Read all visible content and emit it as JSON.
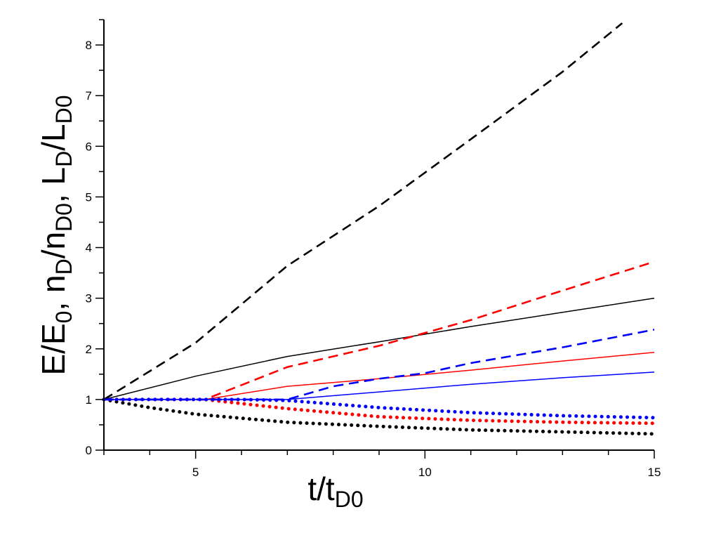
{
  "chart_data": {
    "type": "line",
    "xlabel": {
      "main": "t/t",
      "sub": "D0"
    },
    "ylabel": [
      {
        "t": "E/E",
        "s": "0"
      },
      {
        "t": ", n",
        "s": "D"
      },
      {
        "t": "/n",
        "s": "D0"
      },
      {
        "t": ", L",
        "s": "D"
      },
      {
        "t": "/L",
        "s": "D0"
      }
    ],
    "xlim": [
      3,
      15
    ],
    "ylim": [
      0,
      8.5
    ],
    "x_ticks": [
      5,
      10,
      15
    ],
    "x_minor_step": 1,
    "y_ticks": [
      0,
      1,
      2,
      3,
      4,
      5,
      6,
      7,
      8
    ],
    "y_minor_step": 0.5,
    "grid": false,
    "series": [
      {
        "color": "#000000",
        "style": "dashed",
        "x": [
          3,
          5,
          7,
          9,
          11,
          13,
          14.3
        ],
        "y": [
          1,
          2.12,
          3.64,
          4.82,
          6.14,
          7.47,
          8.43
        ]
      },
      {
        "color": "#000000",
        "style": "solid",
        "x": [
          3,
          5,
          7,
          9,
          11,
          13,
          15
        ],
        "y": [
          1,
          1.46,
          1.85,
          2.14,
          2.44,
          2.72,
          3.0
        ]
      },
      {
        "color": "#000000",
        "style": "dotted",
        "x": [
          3,
          4,
          5,
          7,
          9,
          11,
          13,
          15
        ],
        "y": [
          1,
          0.84,
          0.71,
          0.55,
          0.47,
          0.4,
          0.36,
          0.32
        ]
      },
      {
        "color": "#ff0000",
        "style": "dashed",
        "x": [
          3,
          5.2,
          7,
          9,
          11,
          13,
          15
        ],
        "y": [
          1,
          1.0,
          1.64,
          2.06,
          2.57,
          3.15,
          3.72
        ]
      },
      {
        "color": "#ff0000",
        "style": "solid",
        "x": [
          3,
          5.2,
          7,
          9,
          11,
          13,
          15
        ],
        "y": [
          1,
          1.0,
          1.26,
          1.41,
          1.58,
          1.76,
          1.93
        ]
      },
      {
        "color": "#ff0000",
        "style": "dotted",
        "x": [
          3,
          5.2,
          7,
          9,
          11,
          13,
          15
        ],
        "y": [
          1,
          1.0,
          0.82,
          0.66,
          0.59,
          0.55,
          0.53
        ]
      },
      {
        "color": "#0000ff",
        "style": "dashed",
        "x": [
          3,
          7,
          8,
          9,
          10,
          11,
          13,
          15
        ],
        "y": [
          1,
          1.0,
          1.26,
          1.41,
          1.52,
          1.72,
          2.03,
          2.38
        ]
      },
      {
        "color": "#0000ff",
        "style": "solid",
        "x": [
          3,
          7,
          9,
          11,
          13,
          15
        ],
        "y": [
          1,
          1.0,
          1.15,
          1.3,
          1.43,
          1.54
        ]
      },
      {
        "color": "#0000ff",
        "style": "dotted",
        "x": [
          3,
          6,
          7,
          9,
          11,
          13,
          15
        ],
        "y": [
          1,
          1.0,
          0.98,
          0.84,
          0.74,
          0.68,
          0.64
        ]
      }
    ]
  }
}
